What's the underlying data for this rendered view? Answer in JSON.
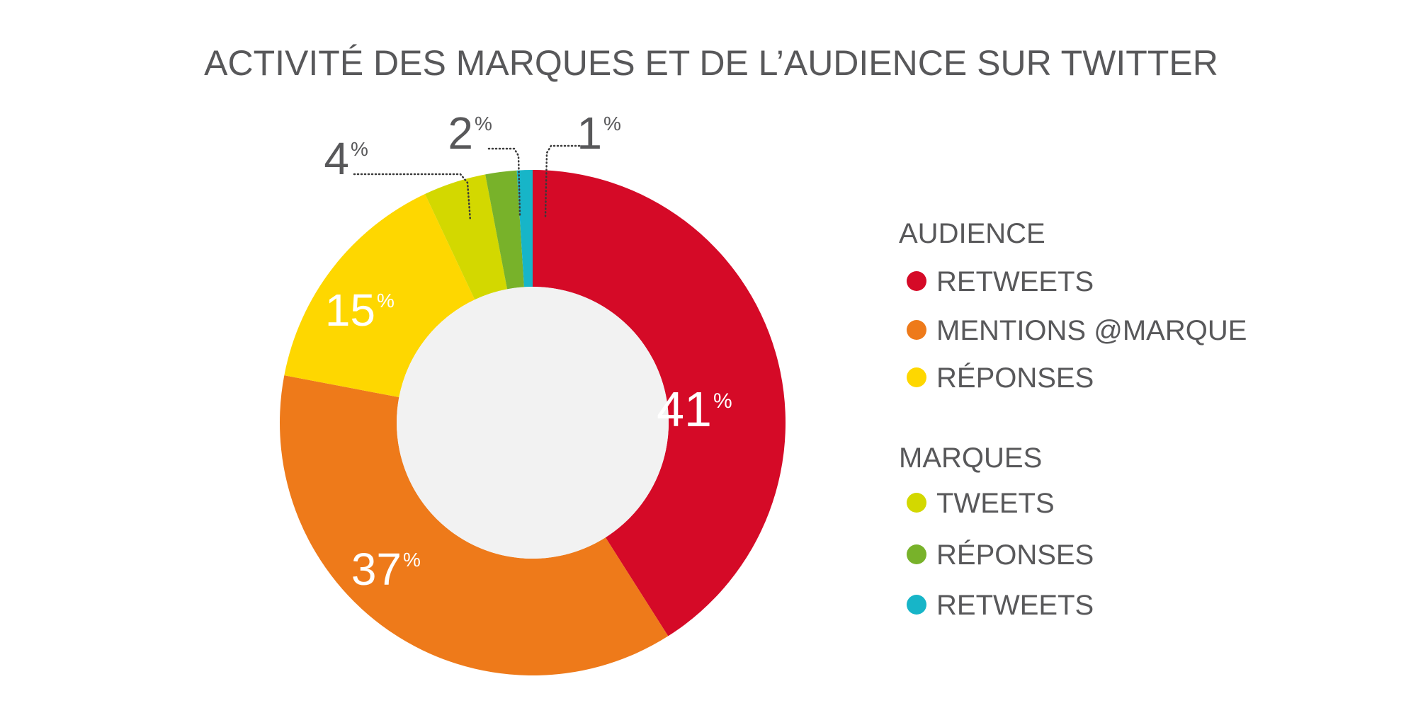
{
  "colors": {
    "retweets_audience": "#d50a27",
    "mentions": "#ee7a1a",
    "reponses_audience": "#fed700",
    "tweets_marques": "#d3d800",
    "reponses_marques": "#78b22a",
    "retweets_marques": "#17b5c8",
    "center": "#f2f2f2",
    "text": "#58585a"
  },
  "chart_data": {
    "type": "pie",
    "variant": "donut",
    "title": "ACTIVITÉ DES MARQUES ET DE L’AUDIENCE SUR TWITTER",
    "unit": "%",
    "slices": [
      {
        "group": "AUDIENCE",
        "label": "RETWEETS",
        "value": 41,
        "color": "#d50a27",
        "label_text": "41"
      },
      {
        "group": "AUDIENCE",
        "label": "MENTIONS @MARQUE",
        "value": 37,
        "color": "#ee7a1a",
        "label_text": "37"
      },
      {
        "group": "AUDIENCE",
        "label": "RÉPONSES",
        "value": 15,
        "color": "#fed700",
        "label_text": "15"
      },
      {
        "group": "MARQUES",
        "label": "TWEETS",
        "value": 4,
        "color": "#d3d800",
        "label_text": "4"
      },
      {
        "group": "MARQUES",
        "label": "RÉPONSES",
        "value": 2,
        "color": "#78b22a",
        "label_text": "2"
      },
      {
        "group": "MARQUES",
        "label": "RETWEETS",
        "value": 1,
        "color": "#17b5c8",
        "label_text": "1"
      }
    ],
    "legend": {
      "placement": "right",
      "groups": [
        {
          "title": "AUDIENCE",
          "items": [
            "RETWEETS",
            "MENTIONS @MARQUE",
            "RÉPONSES"
          ]
        },
        {
          "title": "MARQUES",
          "items": [
            "TWEETS",
            "RÉPONSES",
            "RETWEETS"
          ]
        }
      ]
    }
  }
}
